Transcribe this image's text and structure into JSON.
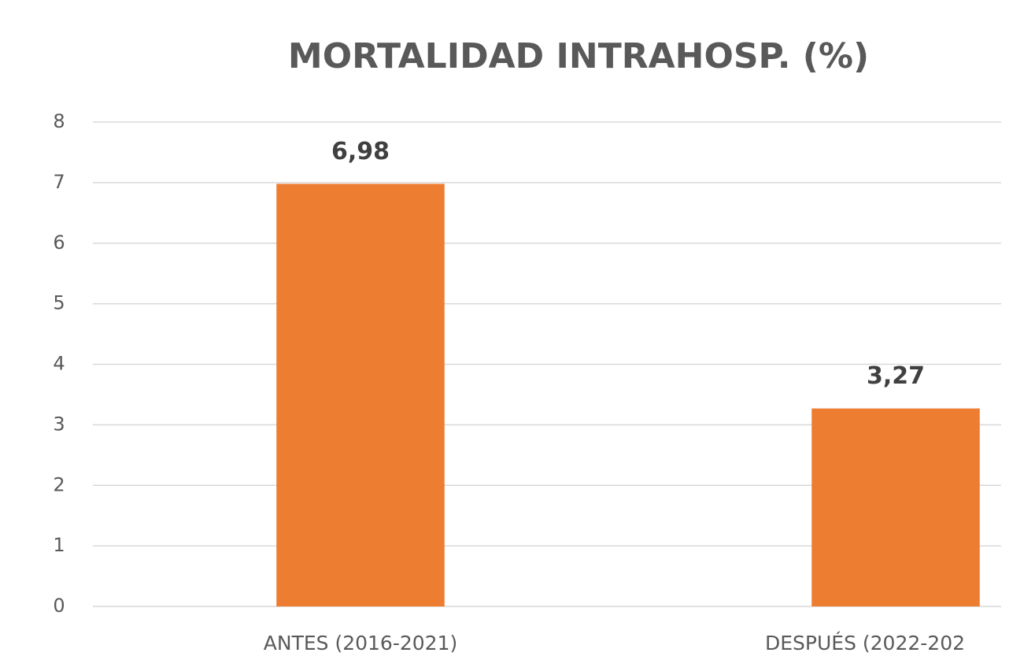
{
  "chart_data": {
    "type": "bar",
    "title": "MORTALIDAD INTRAHOSP. (%)",
    "categories": [
      "ANTES (2016-2021)",
      "DESPUÉS (2022-202"
    ],
    "values": [
      6.98,
      3.27
    ],
    "value_labels": [
      "6,98",
      "3,27"
    ],
    "color": "#ed7d31",
    "ylim": [
      0,
      8
    ],
    "yticks": [
      0,
      1,
      2,
      3,
      4,
      5,
      6,
      7,
      8
    ],
    "grid": true
  }
}
